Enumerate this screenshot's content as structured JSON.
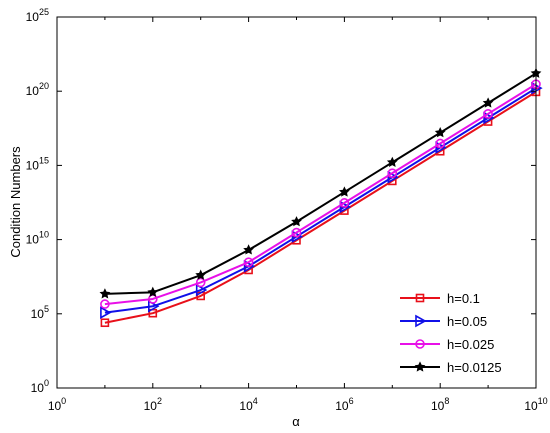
{
  "chart_data": {
    "type": "line",
    "title": "",
    "xlabel": "α",
    "ylabel": "Condition Numbers",
    "xscale": "log",
    "yscale": "log",
    "xlim": [
      1,
      10000000000
    ],
    "ylim": [
      1,
      10000000000000000000000000
    ],
    "grid": false,
    "legend_position": "bottom-right",
    "x_ticks": [
      {
        "value": 1,
        "base": "10",
        "exp": "0"
      },
      {
        "value": 100,
        "base": "10",
        "exp": "2"
      },
      {
        "value": 10000,
        "base": "10",
        "exp": "4"
      },
      {
        "value": 1000000,
        "base": "10",
        "exp": "6"
      },
      {
        "value": 100000000,
        "base": "10",
        "exp": "8"
      },
      {
        "value": 10000000000,
        "base": "10",
        "exp": "10"
      }
    ],
    "y_ticks": [
      {
        "value": 1,
        "base": "10",
        "exp": "0"
      },
      {
        "value": 100000,
        "base": "10",
        "exp": "5"
      },
      {
        "value": 10000000000,
        "base": "10",
        "exp": "10"
      },
      {
        "value": 1000000000000000,
        "base": "10",
        "exp": "15"
      },
      {
        "value": 100000000000000000000,
        "base": "10",
        "exp": "20"
      },
      {
        "value": 10000000000000000000000000,
        "base": "10",
        "exp": "25"
      }
    ],
    "x": [
      10,
      100,
      1000,
      10000,
      100000,
      1000000,
      10000000,
      100000000,
      1000000000,
      10000000000
    ],
    "series": [
      {
        "name": "h=0.1",
        "color": "#e8101a",
        "marker": "square",
        "values": [
          25000.0,
          110000.0,
          1600000.0,
          90000000.0,
          9000000000.0,
          900000000000.0,
          90000000000000.0,
          9000000000000000.0,
          9e+17,
          9e+19
        ]
      },
      {
        "name": "h=0.05",
        "color": "#1010e8",
        "marker": "triangle-right",
        "values": [
          120000.0,
          320000.0,
          4000000.0,
          160000000.0,
          16000000000.0,
          1600000000000.0,
          160000000000000.0,
          1.6e+16,
          1.6e+18,
          1.6e+20
        ]
      },
      {
        "name": "h=0.025",
        "color": "#e810e8",
        "marker": "circle",
        "values": [
          450000.0,
          1000000.0,
          13000000.0,
          300000000.0,
          30000000000.0,
          3000000000000.0,
          300000000000000.0,
          3e+16,
          3e+18,
          3e+20
        ]
      },
      {
        "name": "h=0.0125",
        "color": "#000000",
        "marker": "star",
        "values": [
          2200000.0,
          2800000.0,
          40000000.0,
          2000000000.0,
          160000000000.0,
          16000000000000.0,
          1600000000000000.0,
          1.6e+17,
          1.6e+19,
          1.6e+21
        ]
      }
    ]
  }
}
